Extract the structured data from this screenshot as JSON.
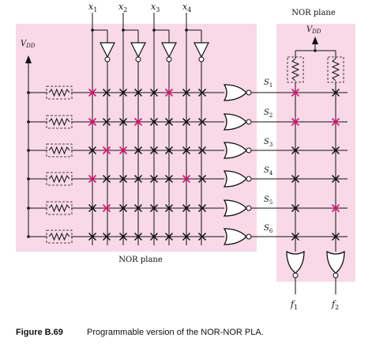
{
  "inputs": [
    {
      "var": "x",
      "sub": "1"
    },
    {
      "var": "x",
      "sub": "2"
    },
    {
      "var": "x",
      "sub": "3"
    },
    {
      "var": "x",
      "sub": "4"
    }
  ],
  "products": [
    {
      "var": "S",
      "sub": "1"
    },
    {
      "var": "S",
      "sub": "2"
    },
    {
      "var": "S",
      "sub": "3"
    },
    {
      "var": "S",
      "sub": "4"
    },
    {
      "var": "S",
      "sub": "5"
    },
    {
      "var": "S",
      "sub": "6"
    }
  ],
  "outputs": [
    {
      "var": "f",
      "sub": "1"
    },
    {
      "var": "f",
      "sub": "2"
    }
  ],
  "vdd_left": {
    "var": "V",
    "sub": "DD"
  },
  "vdd_right": {
    "var": "V",
    "sub": "DD"
  },
  "plane1_label": "NOR plane",
  "plane2_label": "NOR plane",
  "and_plane_programmed": [
    [
      1,
      0,
      0,
      0,
      0,
      1,
      0,
      0
    ],
    [
      1,
      0,
      0,
      1,
      0,
      0,
      0,
      0
    ],
    [
      0,
      1,
      1,
      0,
      0,
      0,
      0,
      0
    ],
    [
      1,
      0,
      0,
      0,
      0,
      0,
      1,
      0
    ],
    [
      0,
      1,
      0,
      0,
      0,
      0,
      0,
      0
    ],
    [
      0,
      0,
      0,
      0,
      0,
      0,
      0,
      0
    ]
  ],
  "or_plane_programmed": [
    [
      1,
      0
    ],
    [
      1,
      1
    ],
    [
      0,
      0
    ],
    [
      0,
      0
    ],
    [
      0,
      1
    ],
    [
      0,
      0
    ]
  ],
  "caption": {
    "figure": "Figure B.69",
    "text": "Programmable version of the NOR-NOR PLA."
  },
  "colors": {
    "plane_bg": "#f9d9e7",
    "programmed": "#e2177b",
    "unprogrammed": "#111111",
    "wire": "#111111"
  }
}
